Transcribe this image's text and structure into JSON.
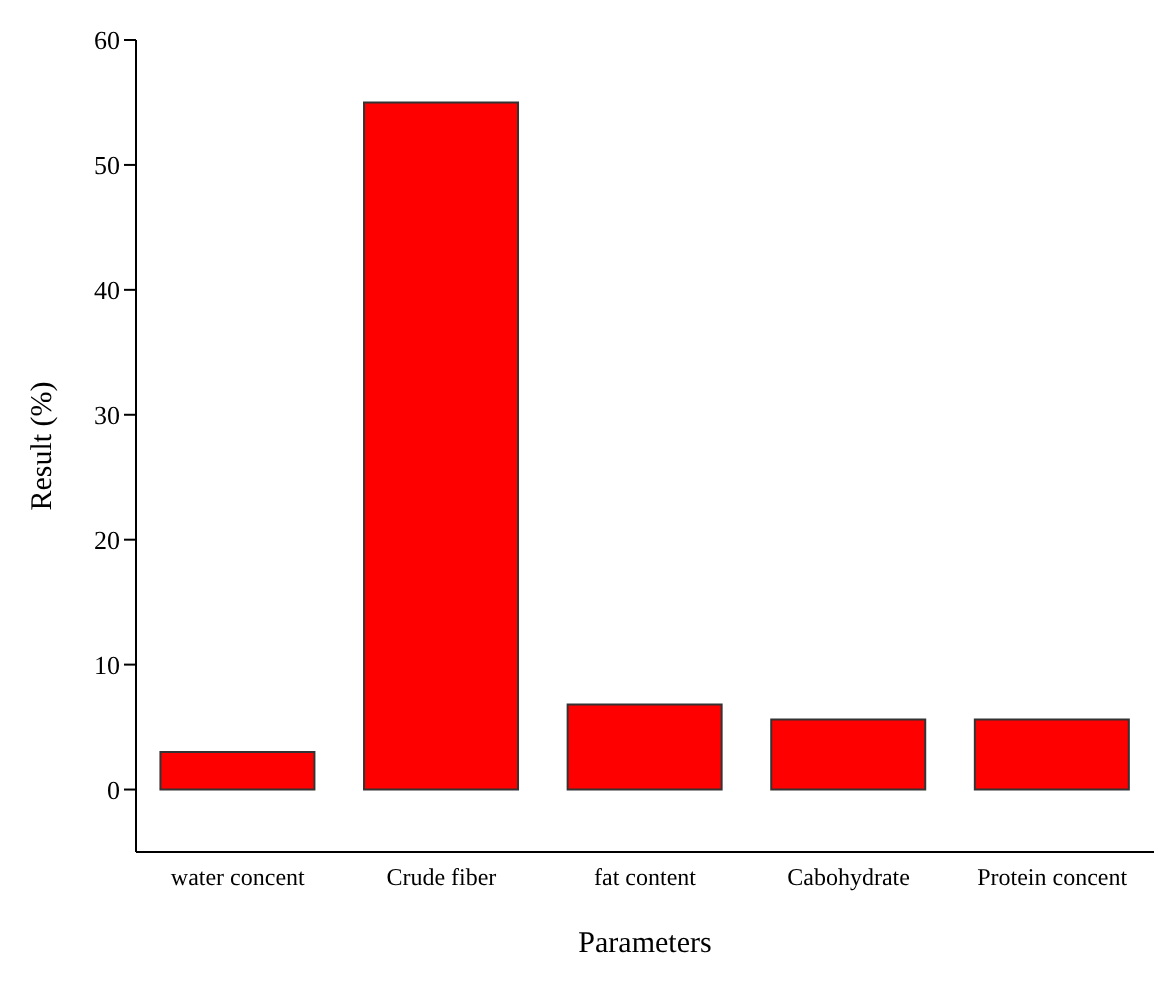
{
  "chart_data": {
    "type": "bar",
    "xlabel": "Parameters",
    "ylabel": "Result (%)",
    "categories": [
      "water concent",
      "Crude fiber",
      "fat content",
      "Cabohydrate",
      "Protein concent"
    ],
    "values": [
      3,
      55,
      6.8,
      5.6,
      5.6
    ],
    "color": "#ff0000",
    "ylim": [
      -5,
      60
    ],
    "yticks": [
      0,
      10,
      20,
      30,
      40,
      50,
      60
    ],
    "grid": false
  }
}
